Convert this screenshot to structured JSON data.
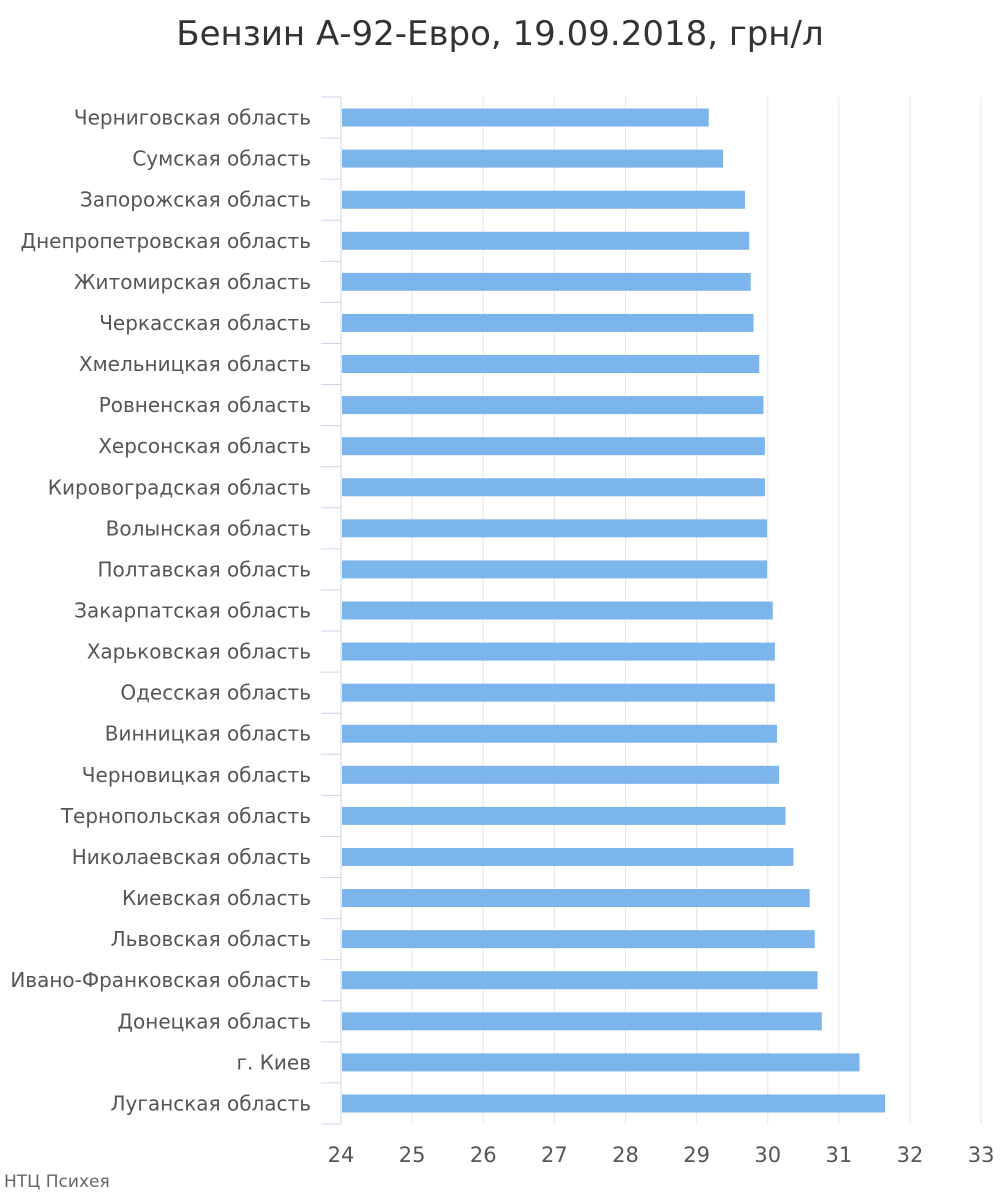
{
  "chart_data": {
    "type": "bar",
    "orientation": "horizontal",
    "title": "Бензин А-92-Евро, 19.09.2018, грн/л",
    "xlabel": "",
    "ylabel": "",
    "xlim": [
      24,
      33
    ],
    "xticks": [
      "24",
      "25",
      "26",
      "27",
      "28",
      "29",
      "30",
      "31",
      "32",
      "33"
    ],
    "grid": true,
    "legend": "none",
    "bar_color": "#7cb5ec",
    "categories": [
      "Черниговская область",
      "Сумская область",
      "Запорожская область",
      "Днепропетровская область",
      "Житомирская область",
      "Черкасская область",
      "Хмельницкая область",
      "Ровненская область",
      "Херсонская область",
      "Кировоградская область",
      "Волынская область",
      "Полтавская область",
      "Закарпатская область",
      "Харьковская область",
      "Одесская область",
      "Винницкая область",
      "Черновицкая область",
      "Тернопольская область",
      "Николаевская область",
      "Киевская область",
      "Львовская область",
      "Ивано-Франковская область",
      "Донецкая область",
      "г. Киев",
      "Луганская область"
    ],
    "values": [
      29.17,
      29.37,
      29.68,
      29.74,
      29.76,
      29.8,
      29.88,
      29.94,
      29.96,
      29.96,
      29.99,
      29.99,
      30.07,
      30.1,
      30.1,
      30.13,
      30.16,
      30.25,
      30.36,
      30.59,
      30.66,
      30.7,
      30.76,
      31.29,
      31.65
    ]
  },
  "source": "НТЦ Психея"
}
